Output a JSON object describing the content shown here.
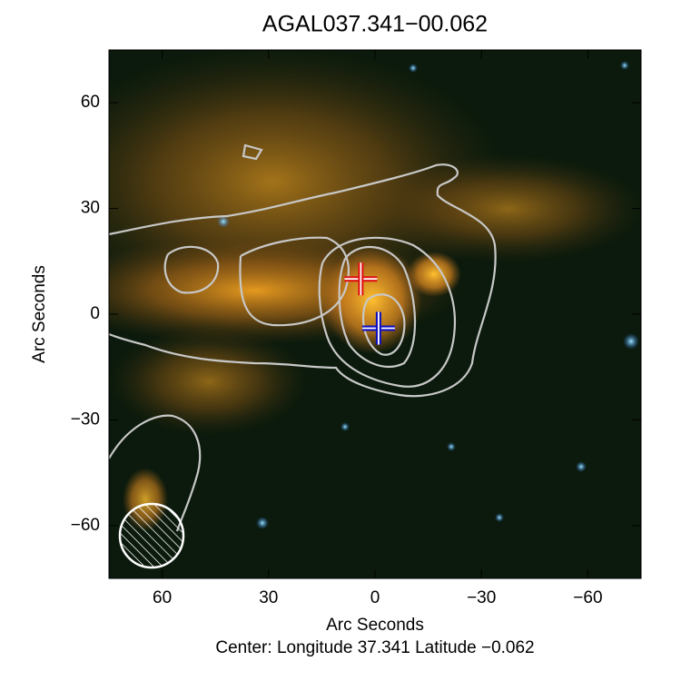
{
  "chart_data": {
    "type": "image",
    "title": "AGAL037.341−00.062",
    "xlabel": "Arc Seconds",
    "ylabel": "Arc Seconds",
    "subtitle": "Center:  Longitude 37.341 Latitude −0.062",
    "xlim": [
      75,
      -75
    ],
    "ylim": [
      -75,
      75
    ],
    "xticks": [
      60,
      30,
      0,
      {
        "value": -30,
        "label": "−30"
      },
      {
        "value": -60,
        "label": "−60"
      }
    ],
    "yticks": [
      {
        "value": -60,
        "label": "−60"
      },
      {
        "value": -30,
        "label": "−30"
      },
      0,
      30,
      60
    ],
    "markers": [
      {
        "x": 4,
        "y": 10,
        "color": "#e01010"
      },
      {
        "x": -1,
        "y": -4,
        "color": "#1010c0"
      }
    ]
  }
}
